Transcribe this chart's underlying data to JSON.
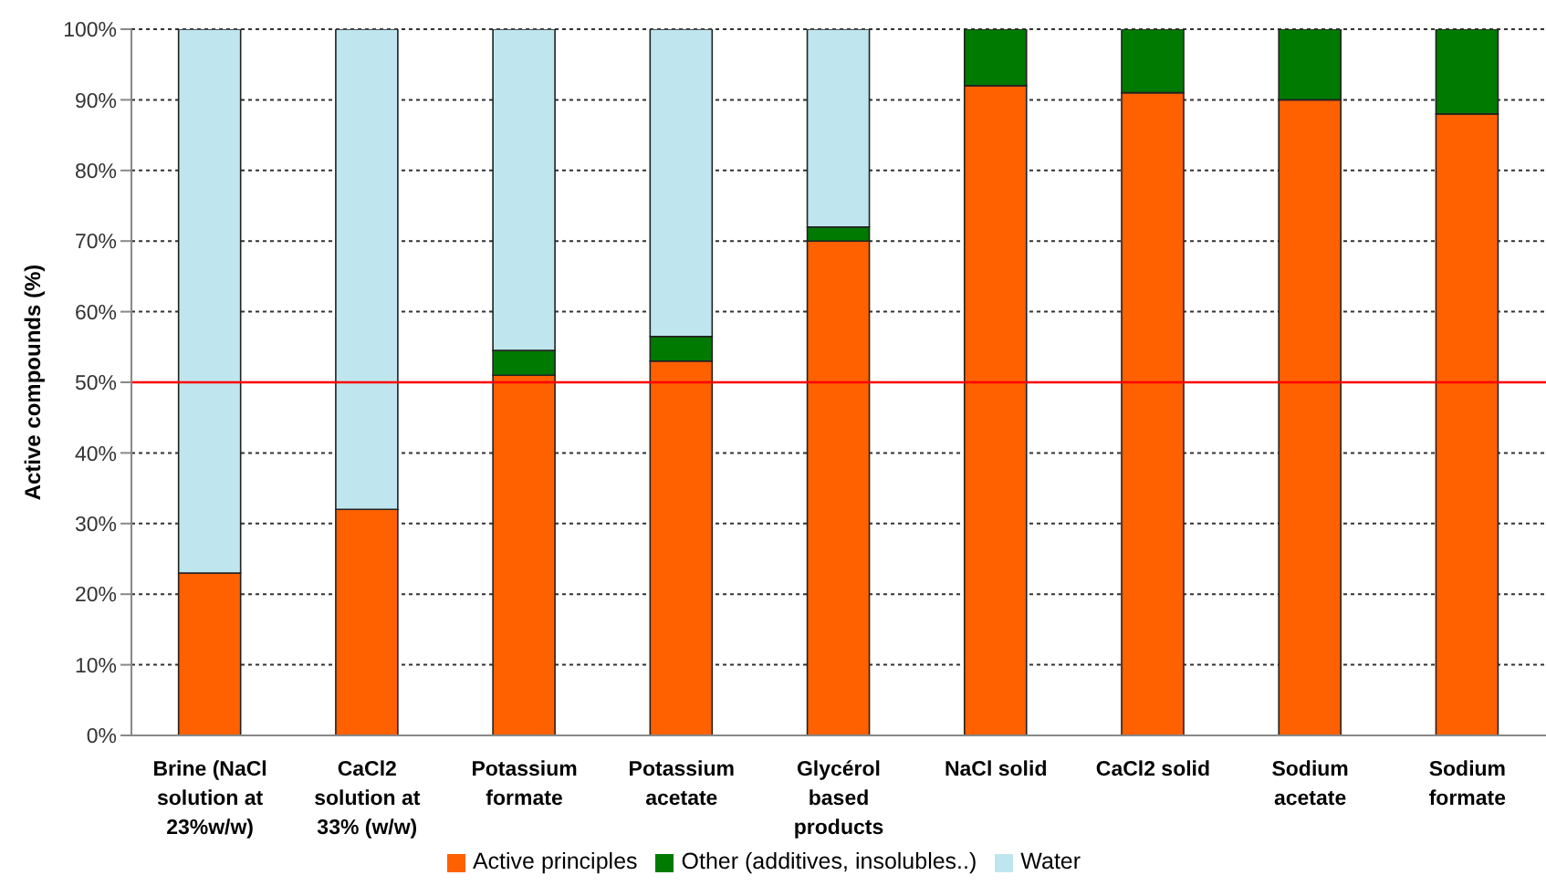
{
  "chart_data": {
    "type": "bar",
    "ylabel": "Active compounds (%)",
    "categories": [
      "Brine (NaCl solution at 23%w/w)",
      "CaCl2 solution at 33% (w/w)",
      "Potassium formate",
      "Potassium acetate",
      "Glycérol based products",
      "NaCl solid",
      "CaCl2 solid",
      "Sodium acetate",
      "Sodium formate"
    ],
    "series": [
      {
        "name": "Active principles",
        "color": "#ff6000",
        "values": [
          23,
          32,
          51,
          53,
          70,
          92,
          91,
          90,
          88
        ]
      },
      {
        "name": "Other (additives, insolubles..)",
        "color": "#007a00",
        "values": [
          0,
          0,
          3.5,
          3.5,
          2,
          8,
          9,
          10,
          12
        ]
      },
      {
        "name": "Water",
        "color": "#bfe6ef",
        "values": [
          77,
          68,
          45.5,
          43.5,
          28,
          0,
          0,
          0,
          0
        ]
      }
    ],
    "stacked": true,
    "ylim": [
      0,
      100
    ],
    "yticks": [
      {
        "value": 0,
        "label": "0%"
      },
      {
        "value": 10,
        "label": "10%"
      },
      {
        "value": 20,
        "label": "20%"
      },
      {
        "value": 30,
        "label": "30%"
      },
      {
        "value": 40,
        "label": "40%"
      },
      {
        "value": 50,
        "label": "50%"
      },
      {
        "value": 60,
        "label": "60%"
      },
      {
        "value": 70,
        "label": "70%"
      },
      {
        "value": 80,
        "label": "80%"
      },
      {
        "value": 90,
        "label": "90%"
      },
      {
        "value": 100,
        "label": "100%"
      }
    ],
    "grid": "y",
    "legend": "bottom",
    "ref_lines": [
      {
        "axis": "y",
        "value": 50,
        "color": "#ff0000"
      }
    ]
  }
}
